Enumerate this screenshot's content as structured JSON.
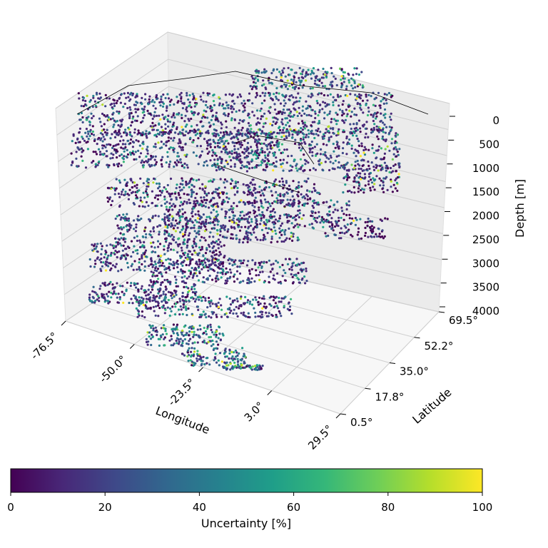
{
  "chart_data": {
    "type": "scatter",
    "subtype": "3d-scatter",
    "title": "",
    "xlabel": "Longitude",
    "ylabel": "Latitude",
    "zlabel": "Depth [m]",
    "x_ticks": [
      "-76.5°",
      "-50.0°",
      "-23.5°",
      "3.0°",
      "29.5°"
    ],
    "y_ticks": [
      "0.5°",
      "17.8°",
      "35.0°",
      "52.2°",
      "69.5°"
    ],
    "z_ticks": [
      "0",
      "500",
      "1000",
      "1500",
      "2000",
      "2500",
      "3000",
      "3500",
      "4000"
    ],
    "xlim": [
      -76.5,
      29.5
    ],
    "ylim": [
      0.5,
      69.5
    ],
    "zlim": [
      4000,
      0
    ],
    "z_inverted": true,
    "grid": true,
    "colormap": "viridis",
    "colorbar": {
      "label": "Uncertainty [%]",
      "ticks": [
        "0",
        "20",
        "40",
        "60",
        "80",
        "100"
      ],
      "range": [
        0,
        100
      ],
      "orientation": "horizontal",
      "placement": "bottom"
    },
    "coastline_overlay": "North Atlantic coastlines at depth 0",
    "series": [
      {
        "values_note": "dense gridded points, mostly low uncertainty",
        "depth_layers": [
          0,
          500,
          1000,
          1500,
          2000,
          2500,
          3000,
          3500,
          4000
        ]
      }
    ],
    "viridis": [
      "#440154",
      "#482878",
      "#3e4989",
      "#31688e",
      "#26828e",
      "#1f9e89",
      "#35b779",
      "#6ece58",
      "#b5de2b",
      "#fde725"
    ]
  }
}
